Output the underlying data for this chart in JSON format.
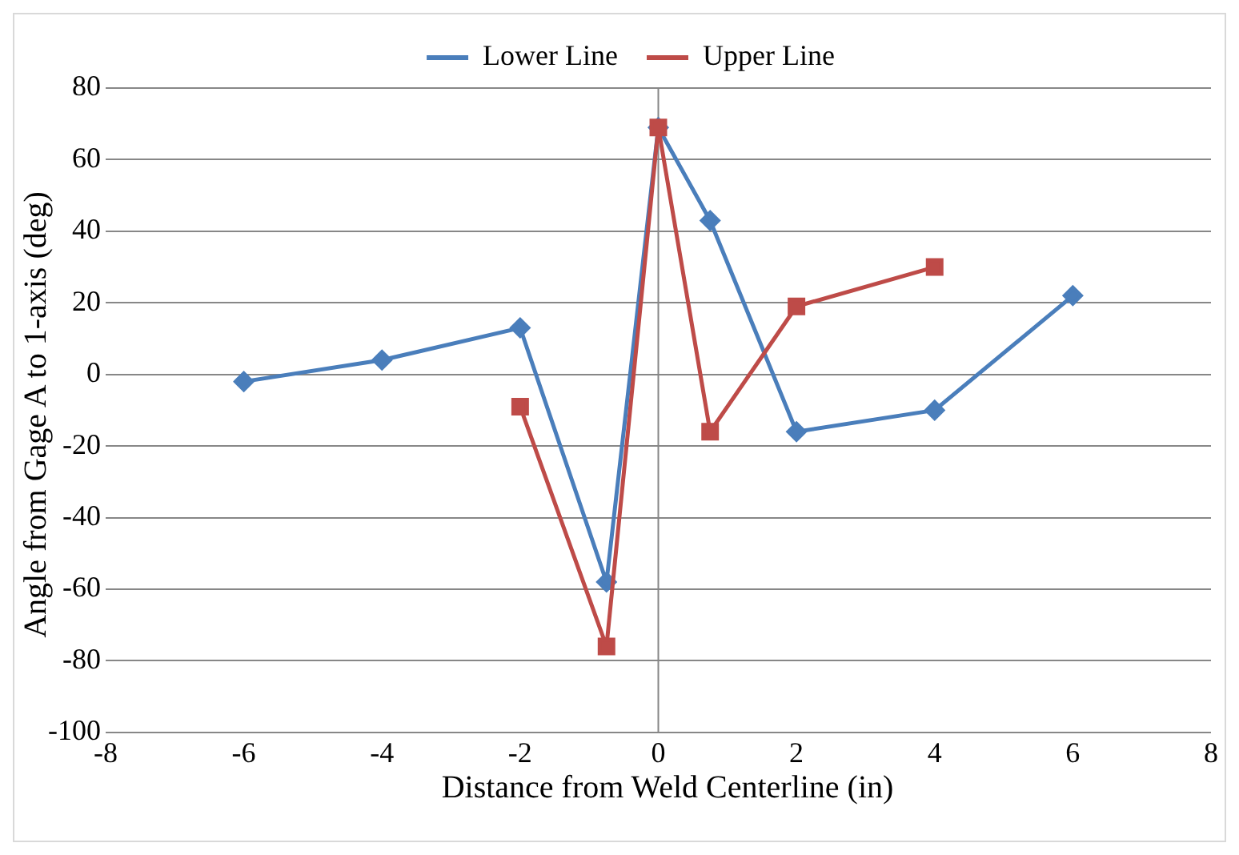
{
  "chart_data": {
    "type": "line",
    "xlabel": "Distance from Weld Centerline (in)",
    "ylabel": "Angle from Gage A to 1-axis (deg)",
    "xlim": [
      -8,
      8
    ],
    "xticks": [
      -8,
      -6,
      -4,
      -2,
      0,
      2,
      4,
      6,
      8
    ],
    "ylim": [
      -100,
      80
    ],
    "yticks": [
      -100,
      -80,
      -60,
      -40,
      -20,
      0,
      20,
      40,
      60,
      80
    ],
    "grid": "y",
    "legend": "top",
    "ref_lines": [
      {
        "axis": "x",
        "value": 0,
        "color": "#878787"
      }
    ],
    "series": [
      {
        "name": "Lower Line",
        "color": "#4a7ebb",
        "marker": "diamond",
        "x": [
          -6,
          -4,
          -2,
          -0.75,
          0,
          0.75,
          2,
          4,
          6
        ],
        "values": [
          -2,
          4,
          13,
          -58,
          69,
          43,
          -16,
          -10,
          22
        ]
      },
      {
        "name": "Upper Line",
        "color": "#be4b48",
        "marker": "square",
        "x": [
          -2,
          -0.75,
          0,
          0.75,
          2,
          4
        ],
        "values": [
          -9,
          -76,
          69,
          -16,
          19,
          30
        ]
      }
    ]
  }
}
